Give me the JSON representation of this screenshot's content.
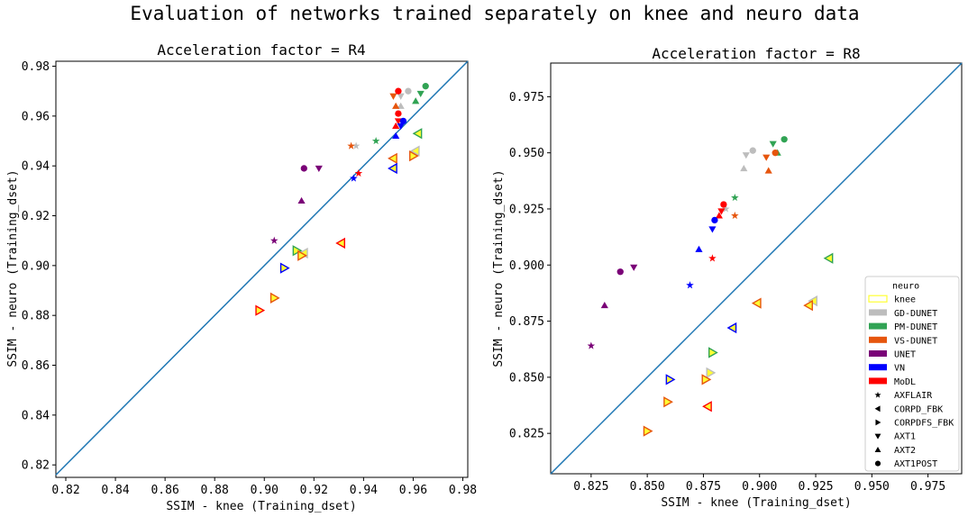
{
  "figure": {
    "title": "Evaluation of networks trained separately on knee and neuro data"
  },
  "colors": {
    "diagonal": "#1f77b4",
    "GD-DUNET": "#bdbdbd",
    "PM-DUNET": "#31a354",
    "VS-DUNET": "#e6550d",
    "UNET": "#7a0177",
    "VN": "#0000ff",
    "MoDL": "#ff0000",
    "knee": "#ffff33"
  },
  "legend": {
    "entries": [
      {
        "label": "neuro",
        "kind": "header"
      },
      {
        "label": "knee",
        "kind": "patch-outline",
        "color": "#ffff33"
      },
      {
        "label": "GD-DUNET",
        "kind": "patch",
        "color": "#bdbdbd"
      },
      {
        "label": "PM-DUNET",
        "kind": "patch",
        "color": "#31a354"
      },
      {
        "label": "VS-DUNET",
        "kind": "patch",
        "color": "#e6550d"
      },
      {
        "label": "UNET",
        "kind": "patch",
        "color": "#7a0177"
      },
      {
        "label": "VN",
        "kind": "patch",
        "color": "#0000ff"
      },
      {
        "label": "MoDL",
        "kind": "patch",
        "color": "#ff0000"
      },
      {
        "label": "AXFLAIR",
        "kind": "marker",
        "marker": "star"
      },
      {
        "label": "CORPD_FBK",
        "kind": "marker",
        "marker": "tri-left"
      },
      {
        "label": "CORPDFS_FBK",
        "kind": "marker",
        "marker": "tri-right"
      },
      {
        "label": "AXT1",
        "kind": "marker",
        "marker": "tri-down"
      },
      {
        "label": "AXT2",
        "kind": "marker",
        "marker": "tri-up"
      },
      {
        "label": "AXT1POST",
        "kind": "marker",
        "marker": "circle"
      }
    ]
  },
  "chart_data": [
    {
      "type": "scatter",
      "title": "Acceleration factor = R4",
      "xlabel": "SSIM - knee (Training_dset)",
      "ylabel": "SSIM - neuro (Training_dset)",
      "xlim": [
        0.816,
        0.982
      ],
      "ylim": [
        0.815,
        0.982
      ],
      "xticks": [
        0.82,
        0.84,
        0.86,
        0.88,
        0.9,
        0.92,
        0.94,
        0.96,
        0.98
      ],
      "yticks": [
        0.82,
        0.84,
        0.86,
        0.88,
        0.9,
        0.92,
        0.94,
        0.96,
        0.98
      ],
      "tick_labels_x": [
        "0.82",
        "0.84",
        "0.86",
        "0.88",
        "0.90",
        "0.92",
        "0.94",
        "0.96",
        "0.98"
      ],
      "tick_labels_y": [
        "0.82",
        "0.84",
        "0.86",
        "0.88",
        "0.90",
        "0.92",
        "0.94",
        "0.96",
        "0.98"
      ],
      "diagonal": true,
      "points": [
        {
          "m": "GD-DUNET",
          "mk": "circle",
          "x": 0.958,
          "y": 0.97
        },
        {
          "m": "GD-DUNET",
          "mk": "tri-down",
          "x": 0.955,
          "y": 0.968
        },
        {
          "m": "GD-DUNET",
          "mk": "tri-up",
          "x": 0.955,
          "y": 0.964
        },
        {
          "m": "GD-DUNET",
          "mk": "star",
          "x": 0.937,
          "y": 0.948
        },
        {
          "m": "PM-DUNET",
          "mk": "circle",
          "x": 0.965,
          "y": 0.972
        },
        {
          "m": "PM-DUNET",
          "mk": "tri-down",
          "x": 0.963,
          "y": 0.969
        },
        {
          "m": "PM-DUNET",
          "mk": "tri-up",
          "x": 0.961,
          "y": 0.966
        },
        {
          "m": "PM-DUNET",
          "mk": "star",
          "x": 0.945,
          "y": 0.95
        },
        {
          "m": "VS-DUNET",
          "mk": "tri-down",
          "x": 0.952,
          "y": 0.968
        },
        {
          "m": "VS-DUNET",
          "mk": "tri-up",
          "x": 0.953,
          "y": 0.964
        },
        {
          "m": "VS-DUNET",
          "mk": "star",
          "x": 0.935,
          "y": 0.948
        },
        {
          "m": "MoDL",
          "mk": "circle",
          "x": 0.954,
          "y": 0.97
        },
        {
          "m": "MoDL",
          "mk": "circle",
          "x": 0.954,
          "y": 0.961
        },
        {
          "m": "MoDL",
          "mk": "tri-down",
          "x": 0.954,
          "y": 0.958
        },
        {
          "m": "MoDL",
          "mk": "tri-up",
          "x": 0.953,
          "y": 0.956
        },
        {
          "m": "MoDL",
          "mk": "star",
          "x": 0.938,
          "y": 0.937
        },
        {
          "m": "VN",
          "mk": "circle",
          "x": 0.956,
          "y": 0.958
        },
        {
          "m": "VN",
          "mk": "tri-down",
          "x": 0.955,
          "y": 0.956
        },
        {
          "m": "VN",
          "mk": "tri-up",
          "x": 0.953,
          "y": 0.952
        },
        {
          "m": "VN",
          "mk": "star",
          "x": 0.936,
          "y": 0.935
        },
        {
          "m": "UNET",
          "mk": "circle",
          "x": 0.916,
          "y": 0.939
        },
        {
          "m": "UNET",
          "mk": "tri-down",
          "x": 0.922,
          "y": 0.939
        },
        {
          "m": "UNET",
          "mk": "tri-up",
          "x": 0.915,
          "y": 0.926
        },
        {
          "m": "UNET",
          "mk": "star",
          "x": 0.904,
          "y": 0.91
        },
        {
          "m": "PM-DUNET",
          "mk": "tri-left",
          "x": 0.962,
          "y": 0.953
        },
        {
          "m": "GD-DUNET",
          "mk": "tri-left",
          "x": 0.961,
          "y": 0.946
        },
        {
          "m": "VS-DUNET",
          "mk": "tri-right",
          "x": 0.96,
          "y": 0.944
        },
        {
          "m": "VS-DUNET",
          "mk": "tri-left",
          "x": 0.952,
          "y": 0.943
        },
        {
          "m": "VN",
          "mk": "tri-left",
          "x": 0.952,
          "y": 0.939
        },
        {
          "m": "MoDL",
          "mk": "tri-left",
          "x": 0.931,
          "y": 0.909
        },
        {
          "m": "PM-DUNET",
          "mk": "tri-right",
          "x": 0.913,
          "y": 0.906
        },
        {
          "m": "GD-DUNET",
          "mk": "tri-left",
          "x": 0.916,
          "y": 0.905
        },
        {
          "m": "VS-DUNET",
          "mk": "tri-right",
          "x": 0.915,
          "y": 0.904
        },
        {
          "m": "VN",
          "mk": "tri-right",
          "x": 0.908,
          "y": 0.899
        },
        {
          "m": "VS-DUNET",
          "mk": "tri-right",
          "x": 0.904,
          "y": 0.887
        },
        {
          "m": "MoDL",
          "mk": "tri-right",
          "x": 0.898,
          "y": 0.882
        }
      ]
    },
    {
      "type": "scatter",
      "title": "Acceleration factor = R8",
      "xlabel": "SSIM - knee (Training_dset)",
      "ylabel": "SSIM - neuro (Training_dset)",
      "xlim": [
        0.807,
        0.99
      ],
      "ylim": [
        0.807,
        0.99
      ],
      "xticks": [
        0.825,
        0.85,
        0.875,
        0.9,
        0.925,
        0.95,
        0.975
      ],
      "yticks": [
        0.825,
        0.85,
        0.875,
        0.9,
        0.925,
        0.95,
        0.975
      ],
      "tick_labels_x": [
        "0.825",
        "0.850",
        "0.875",
        "0.900",
        "0.925",
        "0.950",
        "0.975"
      ],
      "tick_labels_y": [
        "0.825",
        "0.850",
        "0.875",
        "0.900",
        "0.925",
        "0.950",
        "0.975"
      ],
      "diagonal": true,
      "points": [
        {
          "m": "GD-DUNET",
          "mk": "circle",
          "x": 0.897,
          "y": 0.951
        },
        {
          "m": "GD-DUNET",
          "mk": "tri-down",
          "x": 0.894,
          "y": 0.949
        },
        {
          "m": "GD-DUNET",
          "mk": "tri-up",
          "x": 0.893,
          "y": 0.943
        },
        {
          "m": "GD-DUNET",
          "mk": "star",
          "x": 0.885,
          "y": 0.925
        },
        {
          "m": "PM-DUNET",
          "mk": "circle",
          "x": 0.911,
          "y": 0.956
        },
        {
          "m": "PM-DUNET",
          "mk": "tri-down",
          "x": 0.906,
          "y": 0.954
        },
        {
          "m": "PM-DUNET",
          "mk": "tri-up",
          "x": 0.908,
          "y": 0.95
        },
        {
          "m": "PM-DUNET",
          "mk": "star",
          "x": 0.889,
          "y": 0.93
        },
        {
          "m": "VS-DUNET",
          "mk": "circle",
          "x": 0.907,
          "y": 0.95
        },
        {
          "m": "VS-DUNET",
          "mk": "tri-down",
          "x": 0.903,
          "y": 0.948
        },
        {
          "m": "VS-DUNET",
          "mk": "tri-up",
          "x": 0.904,
          "y": 0.942
        },
        {
          "m": "VS-DUNET",
          "mk": "star",
          "x": 0.889,
          "y": 0.922
        },
        {
          "m": "MoDL",
          "mk": "circle",
          "x": 0.884,
          "y": 0.927
        },
        {
          "m": "MoDL",
          "mk": "tri-down",
          "x": 0.883,
          "y": 0.924
        },
        {
          "m": "MoDL",
          "mk": "tri-up",
          "x": 0.882,
          "y": 0.922
        },
        {
          "m": "MoDL",
          "mk": "star",
          "x": 0.879,
          "y": 0.903
        },
        {
          "m": "VN",
          "mk": "circle",
          "x": 0.88,
          "y": 0.92
        },
        {
          "m": "VN",
          "mk": "tri-down",
          "x": 0.879,
          "y": 0.916
        },
        {
          "m": "VN",
          "mk": "tri-up",
          "x": 0.873,
          "y": 0.907
        },
        {
          "m": "VN",
          "mk": "star",
          "x": 0.869,
          "y": 0.891
        },
        {
          "m": "UNET",
          "mk": "circle",
          "x": 0.838,
          "y": 0.897
        },
        {
          "m": "UNET",
          "mk": "tri-down",
          "x": 0.844,
          "y": 0.899
        },
        {
          "m": "UNET",
          "mk": "tri-up",
          "x": 0.831,
          "y": 0.882
        },
        {
          "m": "UNET",
          "mk": "star",
          "x": 0.825,
          "y": 0.864
        },
        {
          "m": "PM-DUNET",
          "mk": "tri-left",
          "x": 0.931,
          "y": 0.903
        },
        {
          "m": "GD-DUNET",
          "mk": "tri-left",
          "x": 0.924,
          "y": 0.884
        },
        {
          "m": "VS-DUNET",
          "mk": "tri-left",
          "x": 0.922,
          "y": 0.882
        },
        {
          "m": "VS-DUNET",
          "mk": "tri-left",
          "x": 0.899,
          "y": 0.883
        },
        {
          "m": "VN",
          "mk": "tri-left",
          "x": 0.888,
          "y": 0.872
        },
        {
          "m": "PM-DUNET",
          "mk": "tri-right",
          "x": 0.879,
          "y": 0.861
        },
        {
          "m": "GD-DUNET",
          "mk": "tri-right",
          "x": 0.878,
          "y": 0.852
        },
        {
          "m": "VS-DUNET",
          "mk": "tri-right",
          "x": 0.876,
          "y": 0.849
        },
        {
          "m": "VN",
          "mk": "tri-right",
          "x": 0.86,
          "y": 0.849
        },
        {
          "m": "MoDL",
          "mk": "tri-left",
          "x": 0.877,
          "y": 0.837
        },
        {
          "m": "VS-DUNET",
          "mk": "tri-right",
          "x": 0.859,
          "y": 0.839
        },
        {
          "m": "VS-DUNET",
          "mk": "tri-right",
          "x": 0.85,
          "y": 0.826
        }
      ]
    }
  ]
}
